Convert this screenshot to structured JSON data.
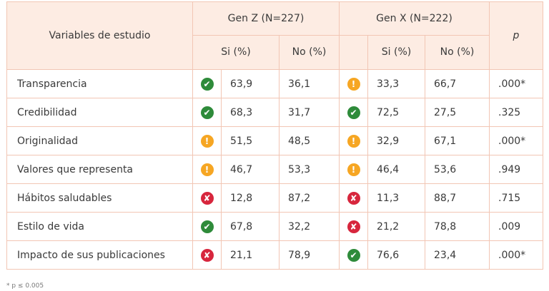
{
  "header": {
    "variables_label": "Variables de estudio",
    "group1_label": "Gen Z (N=227)",
    "group2_label": "Gen X (N=222)",
    "p_label": "p",
    "si_label": "Si (%)",
    "no_label": "No (%)"
  },
  "icon_colors": {
    "check": "#2e8b3a",
    "warning": "#f6a623",
    "cross": "#d7263d"
  },
  "rows": [
    {
      "variable": "Transparencia",
      "z_icon": "check-icon",
      "z_si": "63,9",
      "z_no": "36,1",
      "x_icon": "warning-icon",
      "x_si": "33,3",
      "x_no": "66,7",
      "p": ".000*"
    },
    {
      "variable": "Credibilidad",
      "z_icon": "check-icon",
      "z_si": "68,3",
      "z_no": "31,7",
      "x_icon": "check-icon",
      "x_si": "72,5",
      "x_no": "27,5",
      "p": ".325"
    },
    {
      "variable": "Originalidad",
      "z_icon": "warning-icon",
      "z_si": "51,5",
      "z_no": "48,5",
      "x_icon": "warning-icon",
      "x_si": "32,9",
      "x_no": "67,1",
      "p": ".000*"
    },
    {
      "variable": "Valores que representa",
      "z_icon": "warning-icon",
      "z_si": "46,7",
      "z_no": "53,3",
      "x_icon": "warning-icon",
      "x_si": "46,4",
      "x_no": "53,6",
      "p": ".949"
    },
    {
      "variable": "Hábitos saludables",
      "z_icon": "cross-icon",
      "z_si": "12,8",
      "z_no": "87,2",
      "x_icon": "cross-icon",
      "x_si": "11,3",
      "x_no": "88,7",
      "p": ".715"
    },
    {
      "variable": "Estilo de vida",
      "z_icon": "check-icon",
      "z_si": "67,8",
      "z_no": "32,2",
      "x_icon": "cross-icon",
      "x_si": "21,2",
      "x_no": "78,8",
      "p": ".009"
    },
    {
      "variable": "Impacto de sus publicaciones",
      "z_icon": "cross-icon",
      "z_si": "21,1",
      "z_no": "78,9",
      "x_icon": "check-icon",
      "x_si": "76,6",
      "x_no": "23,4",
      "p": ".000*"
    }
  ],
  "footnote": "* p ≤ 0.005"
}
